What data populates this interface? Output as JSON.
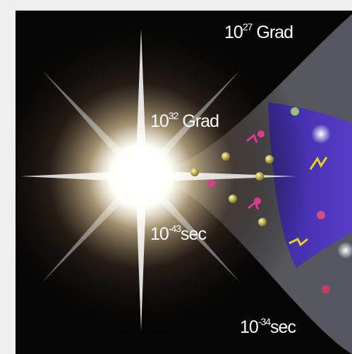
{
  "labels": [
    {
      "base": "10",
      "exponent": "27",
      "unit": "Grad"
    },
    {
      "base": "10",
      "exponent": "32",
      "unit": "Grad"
    },
    {
      "base": "10",
      "exponent": "-43",
      "unit": "sec"
    },
    {
      "base": "10",
      "exponent": "-34",
      "unit": "sec"
    }
  ]
}
